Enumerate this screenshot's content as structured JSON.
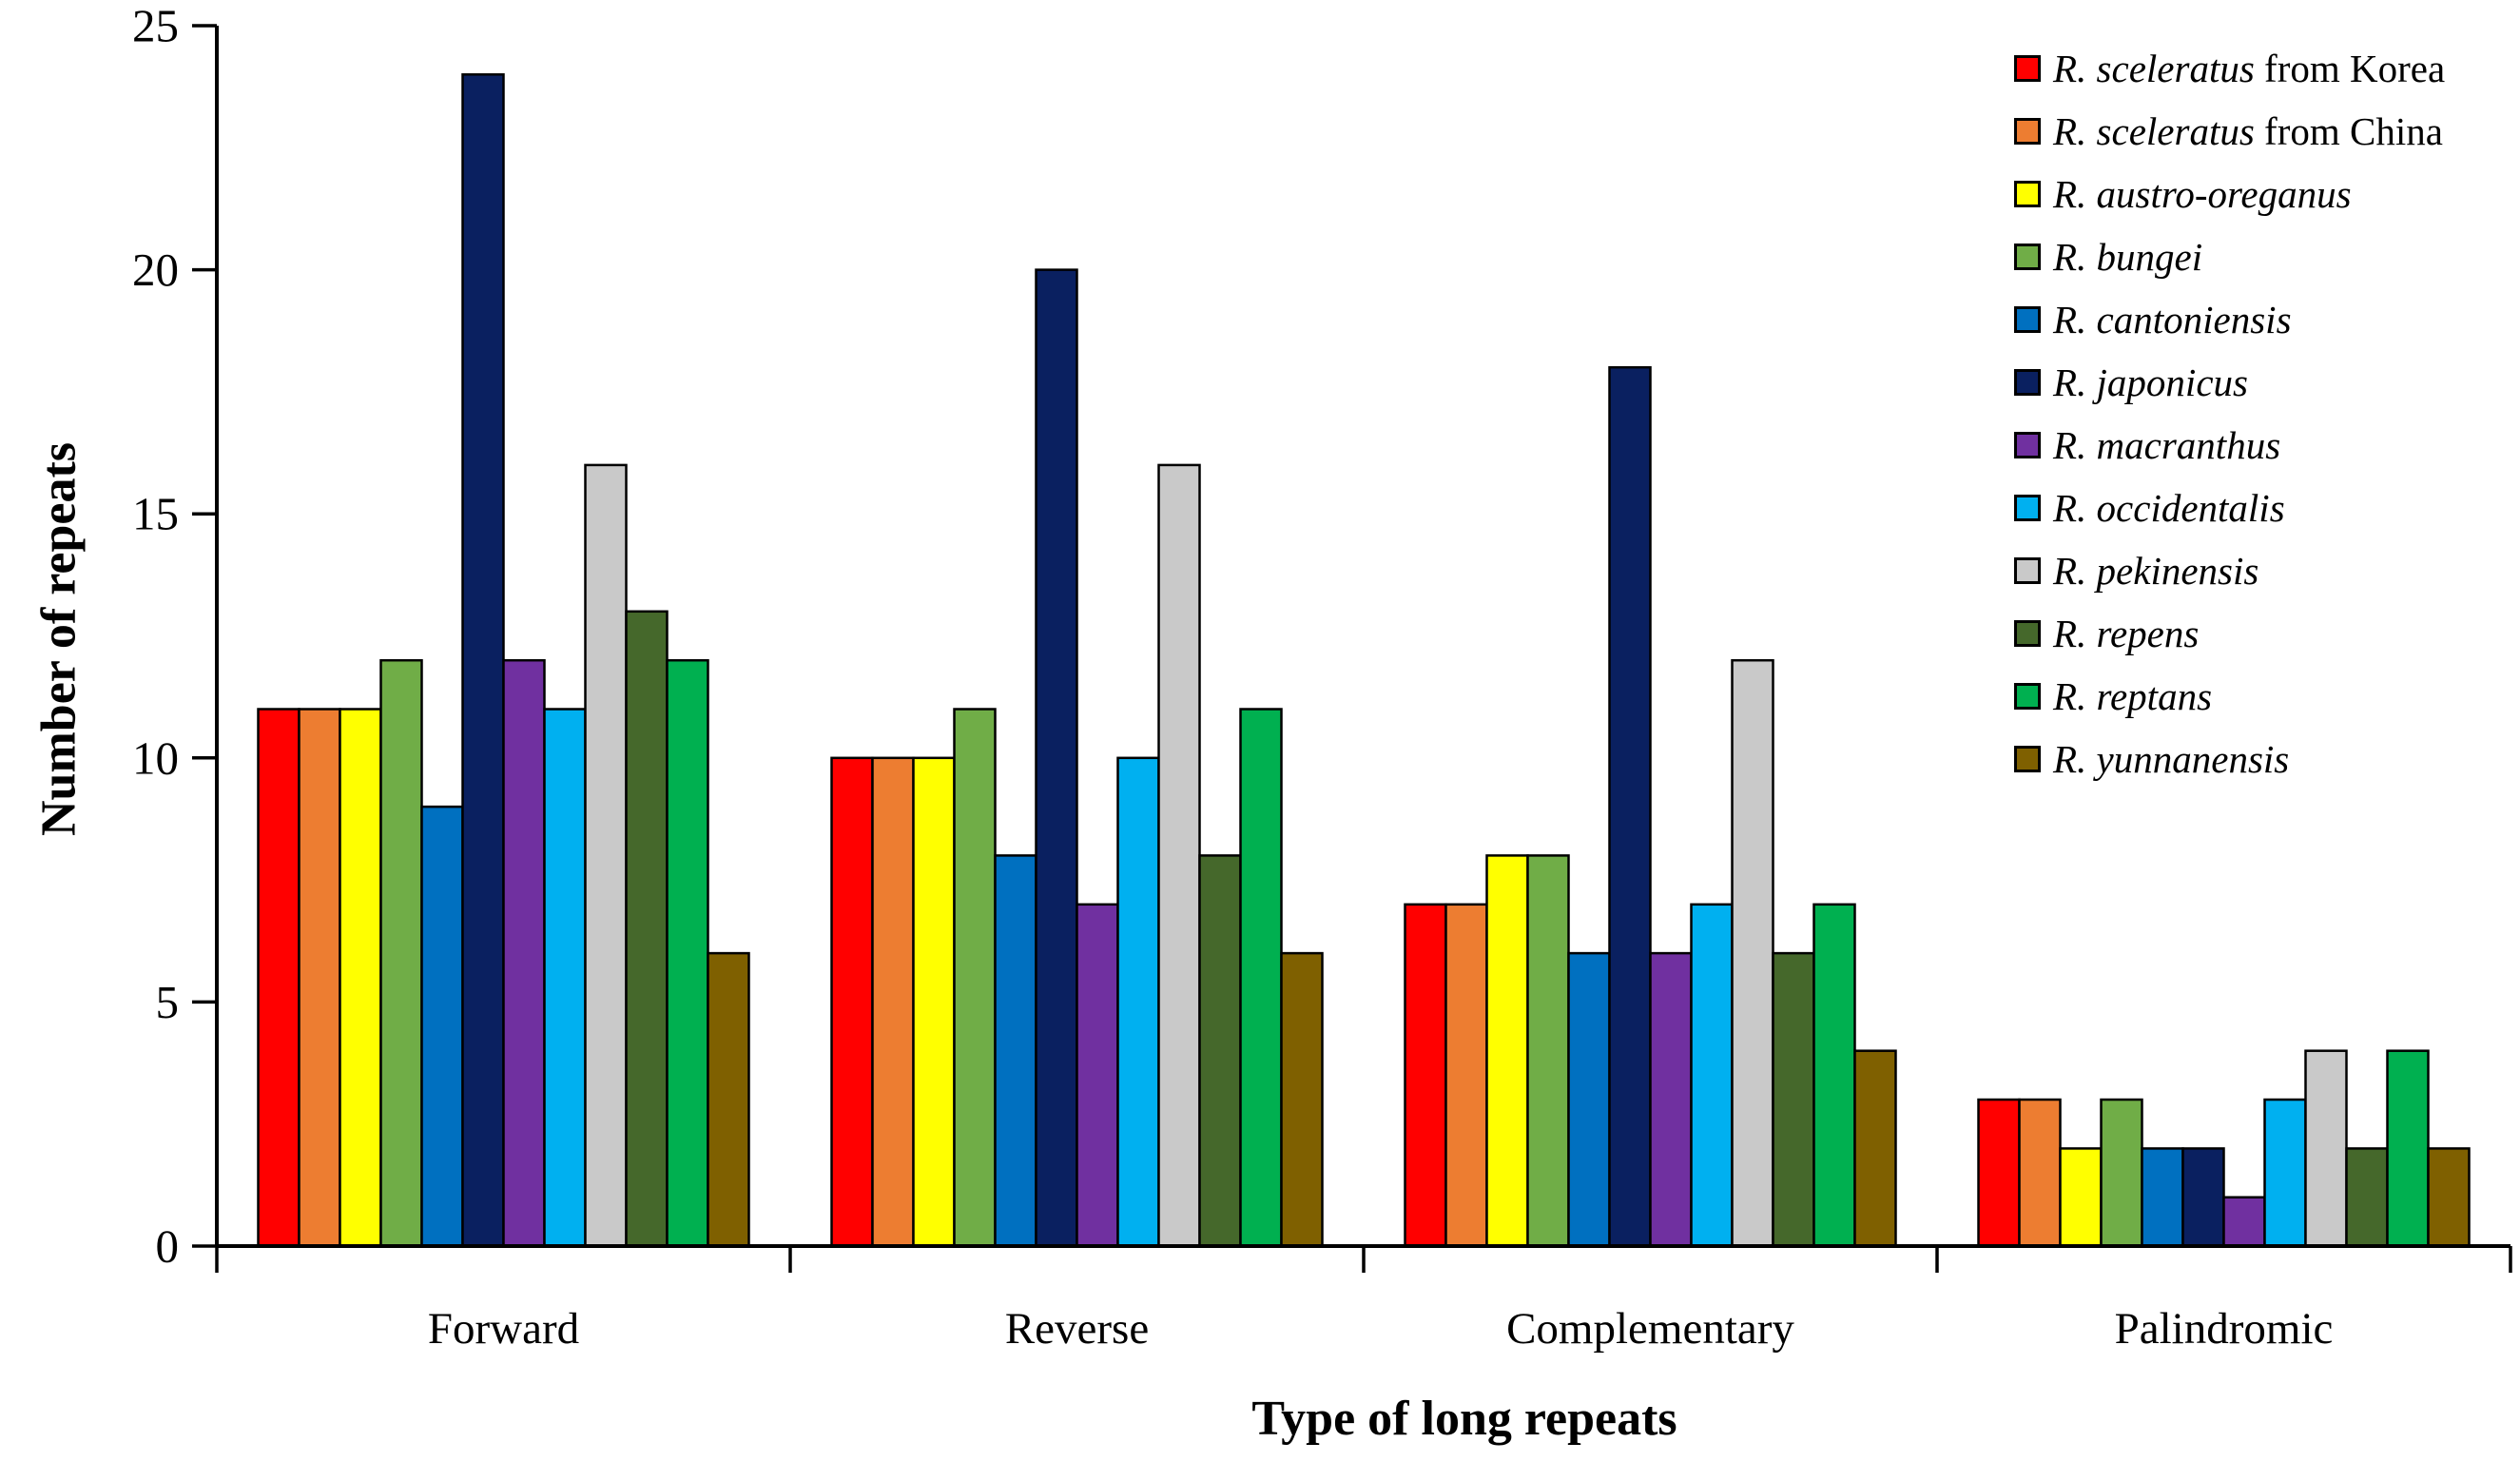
{
  "chart_data": {
    "type": "bar",
    "title": "",
    "xlabel": "Type of long repeats",
    "ylabel": "Number of repeats",
    "ylim": [
      0,
      25
    ],
    "yticks": [
      0,
      5,
      10,
      15,
      20,
      25
    ],
    "grid": false,
    "legend_position": "inside-top-right",
    "bar_outline_color": "#000000",
    "axis_color": "#000000",
    "categories": [
      "Forward",
      "Reverse",
      "Complementary",
      "Palindromic"
    ],
    "series": [
      {
        "name": "R. sceleratus",
        "name_suffix": " from Korea",
        "color": "#FF0000",
        "values": [
          11,
          10,
          7,
          3
        ]
      },
      {
        "name": "R. sceleratus",
        "name_suffix": " from China",
        "color": "#ED7D31",
        "values": [
          11,
          10,
          7,
          3
        ]
      },
      {
        "name": "R. austro-oreganus",
        "name_suffix": "",
        "color": "#FFFF00",
        "values": [
          11,
          10,
          8,
          2
        ]
      },
      {
        "name": "R. bungei",
        "name_suffix": "",
        "color": "#70AD47",
        "values": [
          12,
          11,
          8,
          3
        ]
      },
      {
        "name": "R. cantoniensis",
        "name_suffix": "",
        "color": "#0070C0",
        "values": [
          9,
          8,
          6,
          2
        ]
      },
      {
        "name": "R. japonicus",
        "name_suffix": "",
        "color": "#0A2060",
        "values": [
          24,
          20,
          18,
          2
        ]
      },
      {
        "name": "R. macranthus",
        "name_suffix": "",
        "color": "#7030A0",
        "values": [
          12,
          7,
          6,
          1
        ]
      },
      {
        "name": "R. occidentalis",
        "name_suffix": "",
        "color": "#00B0F0",
        "values": [
          11,
          10,
          7,
          3
        ]
      },
      {
        "name": "R. pekinensis",
        "name_suffix": "",
        "color": "#C9C9C9",
        "values": [
          16,
          16,
          12,
          4
        ]
      },
      {
        "name": "R. repens",
        "name_suffix": "",
        "color": "#45682B",
        "values": [
          13,
          8,
          6,
          2
        ]
      },
      {
        "name": "R. reptans",
        "name_suffix": "",
        "color": "#00B050",
        "values": [
          12,
          11,
          7,
          4
        ]
      },
      {
        "name": "R. yunnanensis",
        "name_suffix": "",
        "color": "#7F6000",
        "values": [
          6,
          6,
          4,
          2
        ]
      }
    ]
  }
}
